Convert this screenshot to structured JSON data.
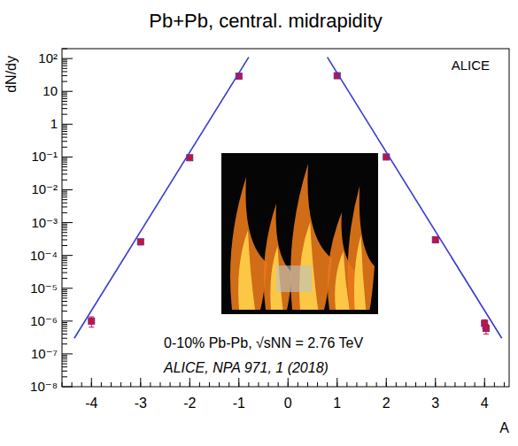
{
  "chart_data": {
    "type": "scatter",
    "title": "Pb+Pb, central. midrapidity",
    "y_label": "dN/dy",
    "x_label": "A",
    "annotations": [
      "ALICE",
      "0-10% Pb-Pb, √sNN = 2.76 TeV",
      "ALICE,  NPA 971, 1 (2018)"
    ],
    "log": "y",
    "xlim": [
      -4.6,
      4.5
    ],
    "ylim": [
      1e-08,
      200
    ],
    "xticks": [
      -4,
      -3,
      -2,
      -1,
      0,
      1,
      2,
      3,
      4
    ],
    "yticks": [
      {
        "value": 1e-08,
        "label": "10⁻⁸"
      },
      {
        "value": 1e-07,
        "label": "10⁻⁷"
      },
      {
        "value": 1e-06,
        "label": "10⁻⁶"
      },
      {
        "value": 1e-05,
        "label": "10⁻⁵"
      },
      {
        "value": 0.0001,
        "label": "10⁻⁴"
      },
      {
        "value": 0.001,
        "label": "10⁻³"
      },
      {
        "value": 0.01,
        "label": "10⁻²"
      },
      {
        "value": 0.1,
        "label": "10⁻¹"
      },
      1,
      10,
      {
        "value": 100,
        "label": "10²"
      }
    ],
    "series": [
      {
        "type": "scatter",
        "color": "#cc1133",
        "marker": "square",
        "x": [
          -4,
          -3,
          -2,
          -1
        ],
        "values": [
          1e-06,
          0.00026,
          0.095,
          29
        ],
        "errors": [
          3.5e-07,
          5e-05,
          0.004,
          0.8
        ]
      },
      {
        "type": "scatter",
        "color": "#cc1133",
        "marker": "square",
        "x": [
          1,
          2,
          3,
          4,
          4.03
        ],
        "values": [
          30,
          0.1,
          0.0003,
          8.5e-07,
          6e-07
        ],
        "errors": [
          0.8,
          0.004,
          2e-05,
          2.5e-07,
          2e-07
        ]
      },
      {
        "type": "line",
        "color": "#3a3acf",
        "line_style": "solid",
        "x": [
          -4.35,
          -0.8
        ],
        "values": [
          3e-07,
          110
        ]
      },
      {
        "type": "line",
        "color": "#3a3acf",
        "line_style": "solid",
        "x": [
          0.8,
          4.35
        ],
        "values": [
          110,
          3e-07
        ]
      }
    ]
  }
}
